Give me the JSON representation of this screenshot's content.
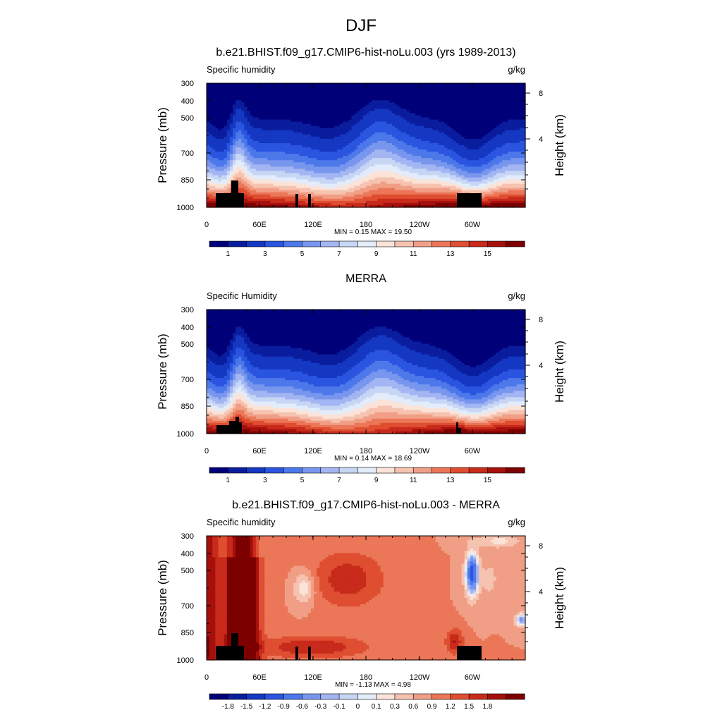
{
  "figure": {
    "title": "DJF"
  },
  "chart_data": [
    {
      "type": "heatmap",
      "title": "b.e21.BHIST.f09_g17.CMIP6-hist-noLu.003 (yrs 1989-2013)",
      "left_label": "Specific humidity",
      "units": "g/kg",
      "ylabel": "Pressure (mb)",
      "y2label": "Height (km)",
      "x_ticks": [
        "0",
        "60E",
        "120E",
        "180",
        "120W",
        "60W"
      ],
      "y_ticks": [
        "300",
        "400",
        "500",
        "700",
        "850",
        "1000"
      ],
      "y2_ticks": [
        "8",
        "4"
      ],
      "min_max": "MIN =   0.15  MAX =  19.50",
      "colorbar_labels": [
        "1",
        "3",
        "5",
        "7",
        "9",
        "11",
        "13",
        "15"
      ],
      "colors": [
        "#000078",
        "#0a1d9e",
        "#1538c2",
        "#2a55e0",
        "#4c78ea",
        "#7896ee",
        "#a3b5f2",
        "#c8d6f6",
        "#e3ecfa",
        "#fbe3d8",
        "#f6c3b0",
        "#f19e86",
        "#eb7658",
        "#df4e31",
        "#c82a1b",
        "#a6100c",
        "#7d0000"
      ],
      "scale": "sequential"
    },
    {
      "type": "heatmap",
      "title": "MERRA",
      "left_label": "Specific Humidity",
      "units": "g/kg",
      "ylabel": "Pressure (mb)",
      "y2label": "Height (km)",
      "x_ticks": [
        "0",
        "60E",
        "120E",
        "180",
        "120W",
        "60W"
      ],
      "y_ticks": [
        "300",
        "400",
        "500",
        "700",
        "850",
        "1000"
      ],
      "y2_ticks": [
        "8",
        "4"
      ],
      "min_max": "MIN =   0.14  MAX =  18.69",
      "colorbar_labels": [
        "1",
        "3",
        "5",
        "7",
        "9",
        "11",
        "13",
        "15"
      ],
      "colors": [
        "#000078",
        "#0a1d9e",
        "#1538c2",
        "#2a55e0",
        "#4c78ea",
        "#7896ee",
        "#a3b5f2",
        "#c8d6f6",
        "#e3ecfa",
        "#fbe3d8",
        "#f6c3b0",
        "#f19e86",
        "#eb7658",
        "#df4e31",
        "#c82a1b",
        "#a6100c",
        "#7d0000"
      ],
      "scale": "sequential"
    },
    {
      "type": "heatmap",
      "title": "b.e21.BHIST.f09_g17.CMIP6-hist-noLu.003 - MERRA",
      "left_label": "Specific humidity",
      "units": "g/kg",
      "ylabel": "Pressure (mb)",
      "y2label": "Height (km)",
      "x_ticks": [
        "0",
        "60E",
        "120E",
        "180",
        "120W",
        "60W"
      ],
      "y_ticks": [
        "300",
        "400",
        "500",
        "700",
        "850",
        "1000"
      ],
      "y2_ticks": [
        "8",
        "4"
      ],
      "min_max": "MIN =  -1.13  MAX =   4.98",
      "colorbar_labels": [
        "-1.8",
        "-1.5",
        "-1.2",
        "-0.9",
        "-0.6",
        "-0.3",
        "-0.1",
        "0",
        "0.1",
        "0.3",
        "0.6",
        "0.9",
        "1.2",
        "1.5",
        "1.8"
      ],
      "colors": [
        "#000078",
        "#0a1d9e",
        "#1538c2",
        "#2a55e0",
        "#4c78ea",
        "#7896ee",
        "#a3b5f2",
        "#c8d6f6",
        "#e3ecfa",
        "#fbe3d8",
        "#f6c3b0",
        "#f19e86",
        "#eb7658",
        "#df4e31",
        "#c82a1b",
        "#a6100c",
        "#7d0000"
      ],
      "scale": "diverging"
    }
  ]
}
